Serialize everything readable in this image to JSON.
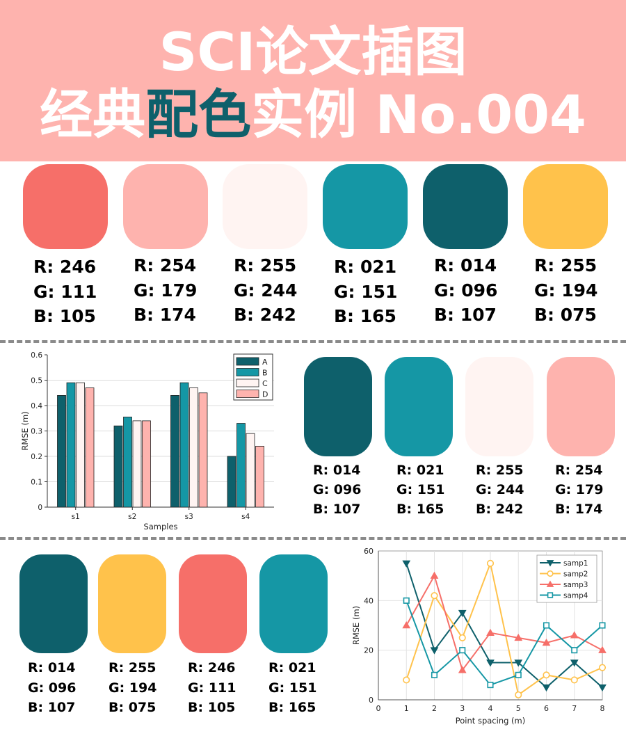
{
  "header": {
    "title_line1": "SCI论文插图",
    "title_line2_pre": "经典",
    "title_line2_highlight": "配色",
    "title_line2_post": "实例 No.004",
    "background_color": "#feb3ae",
    "highlight_color": "#0e606b"
  },
  "palette_row1": [
    {
      "hex": "#f66f69",
      "r": "R: 246",
      "g": "G: 111",
      "b": "B: 105"
    },
    {
      "hex": "#feb3ae",
      "r": "R: 254",
      "g": "G: 179",
      "b": "B: 174"
    },
    {
      "hex": "#fff4f2",
      "r": "R: 255",
      "g": "G: 244",
      "b": "B: 242"
    },
    {
      "hex": "#1597a5",
      "r": "R: 021",
      "g": "G: 151",
      "b": "B: 165"
    },
    {
      "hex": "#0e606b",
      "r": "R: 014",
      "g": "G: 096",
      "b": "B: 107"
    },
    {
      "hex": "#ffc24b",
      "r": "R: 255",
      "g": "G: 194",
      "b": "B: 075"
    }
  ],
  "palette_row2": [
    {
      "hex": "#0e606b",
      "r": "R: 014",
      "g": "G: 096",
      "b": "B: 107"
    },
    {
      "hex": "#1597a5",
      "r": "R: 021",
      "g": "G: 151",
      "b": "B: 165"
    },
    {
      "hex": "#fff4f2",
      "r": "R: 255",
      "g": "G: 244",
      "b": "B: 242"
    },
    {
      "hex": "#feb3ae",
      "r": "R: 254",
      "g": "G: 179",
      "b": "B: 174"
    }
  ],
  "palette_row3": [
    {
      "hex": "#0e606b",
      "r": "R: 014",
      "g": "G: 096",
      "b": "B: 107"
    },
    {
      "hex": "#ffc24b",
      "r": "R: 255",
      "g": "G: 194",
      "b": "B: 075"
    },
    {
      "hex": "#f66f69",
      "r": "R: 246",
      "g": "G: 111",
      "b": "B: 105"
    },
    {
      "hex": "#1597a5",
      "r": "R: 021",
      "g": "G: 151",
      "b": "B: 165"
    }
  ],
  "chart_data": [
    {
      "type": "bar",
      "xlabel": "Samples",
      "ylabel": "RMSE (m)",
      "ylim": [
        0,
        0.6
      ],
      "yticks": [
        "0",
        "0.1",
        "0.2",
        "0.3",
        "0.4",
        "0.5",
        "0.6"
      ],
      "categories": [
        "s1",
        "s2",
        "s3",
        "s4"
      ],
      "grid": true,
      "legend_position": "top-right",
      "series": [
        {
          "name": "A",
          "color": "#0e606b",
          "values": [
            0.44,
            0.32,
            0.44,
            0.2
          ]
        },
        {
          "name": "B",
          "color": "#1597a5",
          "values": [
            0.49,
            0.355,
            0.49,
            0.33
          ]
        },
        {
          "name": "C",
          "color": "#fff4f2",
          "values": [
            0.49,
            0.34,
            0.47,
            0.29
          ]
        },
        {
          "name": "D",
          "color": "#feb3ae",
          "values": [
            0.47,
            0.34,
            0.45,
            0.24
          ]
        }
      ]
    },
    {
      "type": "line",
      "xlabel": "Point spacing (m)",
      "ylabel": "RMSE (m)",
      "xlim": [
        0,
        8
      ],
      "ylim": [
        0,
        60
      ],
      "xticks": [
        "0",
        "1",
        "2",
        "3",
        "4",
        "5",
        "6",
        "7",
        "8"
      ],
      "yticks": [
        "0",
        "20",
        "40",
        "60"
      ],
      "grid": true,
      "legend_position": "top-right",
      "x": [
        1,
        2,
        3,
        4,
        5,
        6,
        7,
        8
      ],
      "series": [
        {
          "name": "samp1",
          "color": "#0e606b",
          "marker": "triangle-down",
          "values": [
            55,
            20,
            35,
            15,
            15,
            5,
            15,
            5
          ]
        },
        {
          "name": "samp2",
          "color": "#ffc24b",
          "marker": "circle",
          "values": [
            8,
            42,
            25,
            55,
            2,
            10,
            8,
            13
          ]
        },
        {
          "name": "samp3",
          "color": "#f66f69",
          "marker": "triangle-up",
          "values": [
            30,
            50,
            12,
            27,
            25,
            23,
            26,
            20
          ]
        },
        {
          "name": "samp4",
          "color": "#1597a5",
          "marker": "square",
          "values": [
            40,
            10,
            20,
            6,
            10,
            30,
            20,
            30
          ]
        }
      ]
    }
  ]
}
